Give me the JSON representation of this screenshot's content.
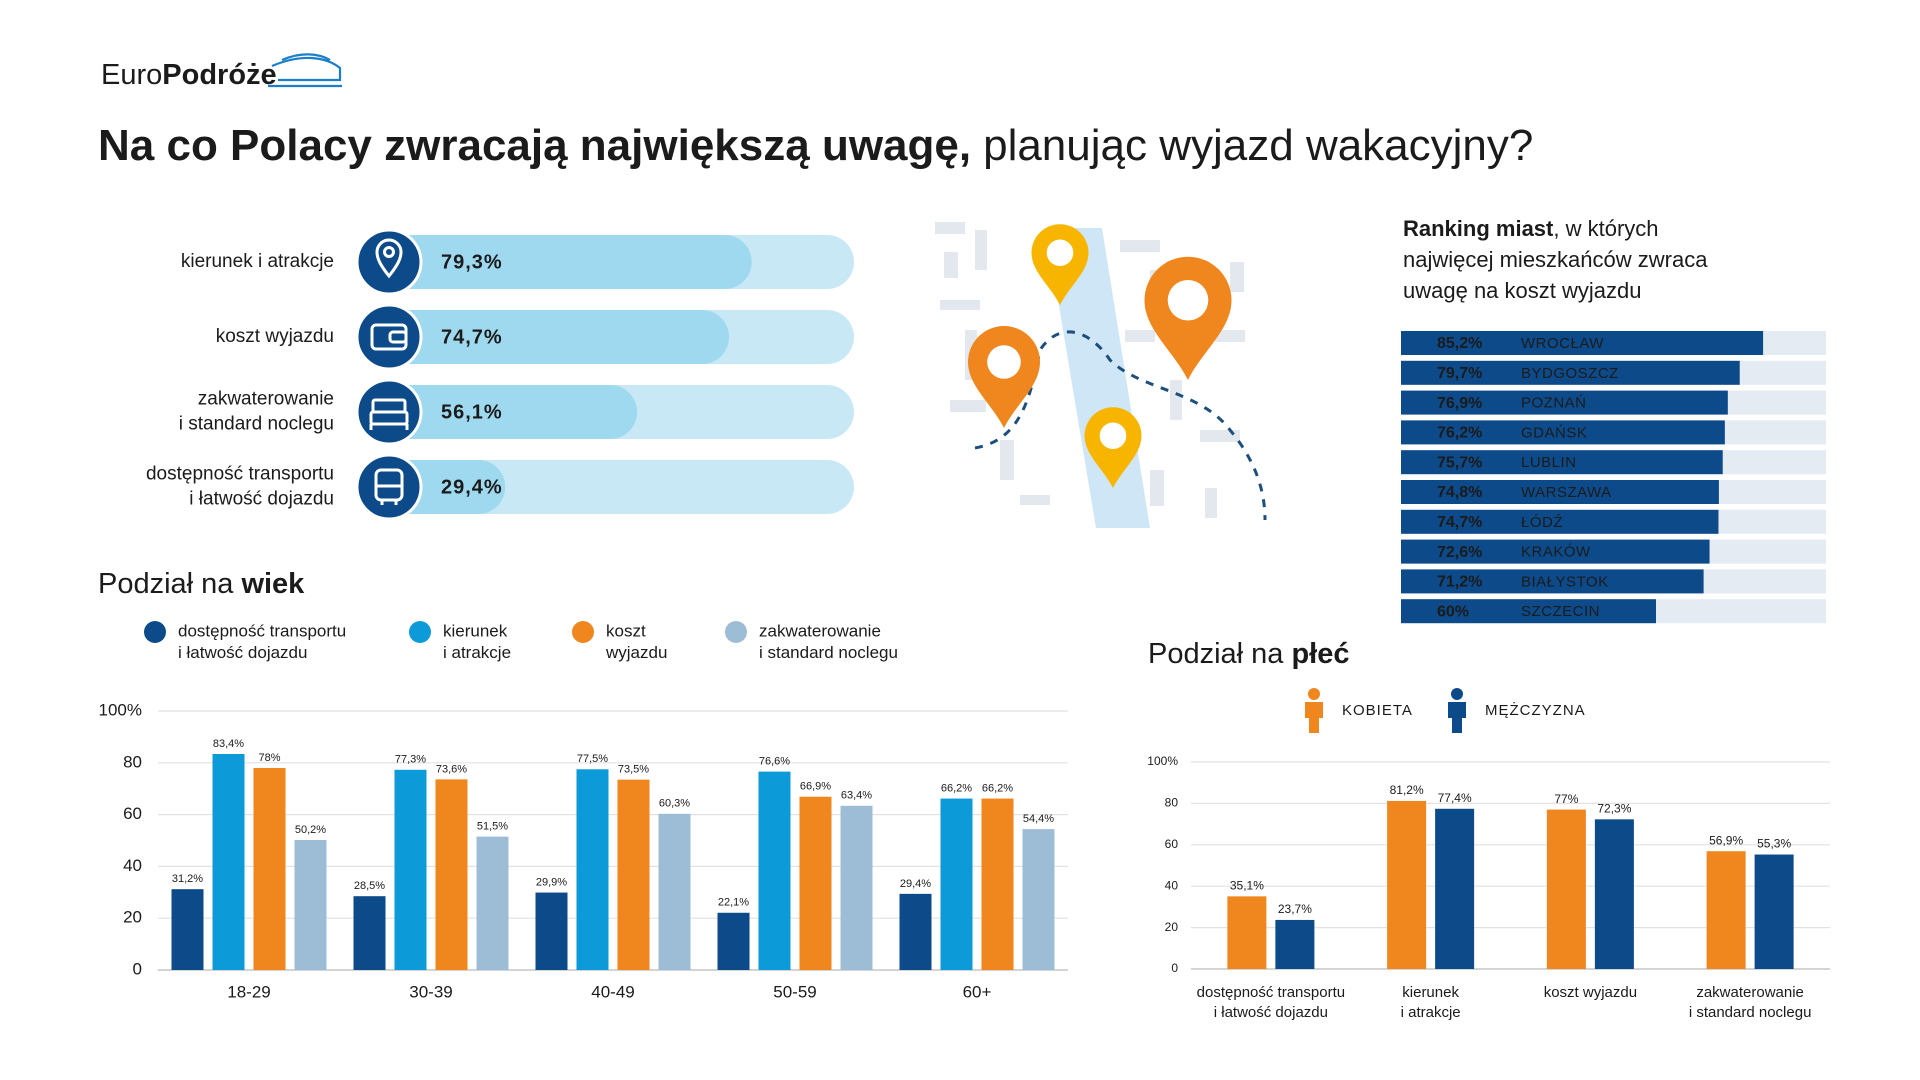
{
  "logo": {
    "part1": "Euro",
    "part2": "Podróże"
  },
  "title": {
    "bold": "Na co Polacy zwracają największą uwagę,",
    "regular": "planując wyjazd wakacyjny?"
  },
  "chart_data": [
    {
      "type": "bar",
      "orientation": "horizontal",
      "categories": [
        "kierunek i atrakcje",
        "koszt wyjazdu",
        "zakwaterowanie\ni standard noclegu",
        "dostępność transportu\ni łatwość dojazdu"
      ],
      "values": [
        79.3,
        74.7,
        56.1,
        29.4
      ],
      "value_labels": [
        "79,3%",
        "74,7%",
        "56,1%",
        "29,4%"
      ],
      "color": "#9fd9ef",
      "track_color": "#c8e8f5",
      "xlim": [
        0,
        100
      ]
    },
    {
      "type": "bar",
      "orientation": "horizontal",
      "title": {
        "bold": "Ranking miast",
        "regular": ", w których\nnajwięcej mieszkańców zwraca\nuwagę na koszt wyjazdu"
      },
      "categories": [
        "WROCŁAW",
        "BYDGOSZCZ",
        "POZNAŃ",
        "GDAŃSK",
        "LUBLIN",
        "WARSZAWA",
        "ŁÓDŹ",
        "KRAKÓW",
        "BIAŁYSTOK",
        "SZCZECIN"
      ],
      "values": [
        85.2,
        79.7,
        76.9,
        76.2,
        75.7,
        74.8,
        74.7,
        72.6,
        71.2,
        60
      ],
      "value_labels": [
        "85,2%",
        "79,7%",
        "76,9%",
        "76,2%",
        "75,7%",
        "74,8%",
        "74,7%",
        "72,6%",
        "71,2%",
        "60%"
      ],
      "color": "#0d4a8a",
      "track_color": "#e4ebf3",
      "xlim": [
        0,
        100
      ]
    },
    {
      "type": "bar",
      "title": {
        "regular": "Podział na",
        "bold": "wiek"
      },
      "categories": [
        "18-29",
        "30-39",
        "40-49",
        "50-59",
        "60+"
      ],
      "series": [
        {
          "name": "dostępność transportu\ni łatwość dojazdu",
          "color": "#0d4a8a",
          "values": [
            31.2,
            28.5,
            29.9,
            22.1,
            29.4
          ],
          "value_labels": [
            "31,2%",
            "28,5%",
            "29,9%",
            "22,1%",
            "29,4%"
          ]
        },
        {
          "name": "kierunek\ni atrakcje",
          "color": "#0c9bd8",
          "values": [
            83.4,
            77.3,
            77.5,
            76.6,
            66.2
          ],
          "value_labels": [
            "83,4%",
            "77,3%",
            "77,5%",
            "76,6%",
            "66,2%"
          ]
        },
        {
          "name": "koszt\nwyjazdu",
          "color": "#f0861e",
          "values": [
            78,
            73.6,
            73.5,
            66.9,
            66.2
          ],
          "value_labels": [
            "78%",
            "73,6%",
            "73,5%",
            "66,9%",
            "66,2%"
          ]
        },
        {
          "name": "zakwaterowanie\ni standard noclegu",
          "color": "#9dbcd6",
          "values": [
            50.2,
            51.5,
            60.3,
            63.4,
            54.4
          ],
          "value_labels": [
            "50,2%",
            "51,5%",
            "60,3%",
            "63,4%",
            "54,4%"
          ]
        }
      ],
      "ylim": [
        0,
        100
      ],
      "yticks": [
        0,
        20,
        40,
        60,
        80,
        {
          "value": 100,
          "label": "100%"
        }
      ],
      "grid": true
    },
    {
      "type": "bar",
      "title": {
        "regular": "Podział na",
        "bold": "płeć"
      },
      "categories": [
        "dostępność transportu\ni łatwość dojazdu",
        "kierunek\ni atrakcje",
        "koszt wyjazdu",
        "zakwaterowanie\ni standard noclegu"
      ],
      "series": [
        {
          "name": "KOBIETA",
          "color": "#f0861e",
          "values": [
            35.1,
            81.2,
            77,
            56.9
          ],
          "value_labels": [
            "35,1%",
            "81,2%",
            "77%",
            "56,9%"
          ]
        },
        {
          "name": "MĘŻCZYZNA",
          "color": "#0d4a8a",
          "values": [
            23.7,
            77.4,
            72.3,
            55.3
          ],
          "value_labels": [
            "23,7%",
            "77,4%",
            "72,3%",
            "55,3%"
          ]
        }
      ],
      "ylim": [
        0,
        100
      ],
      "yticks": [
        0,
        20,
        40,
        60,
        80,
        {
          "value": 100,
          "label": "100%"
        }
      ],
      "grid": true
    }
  ]
}
